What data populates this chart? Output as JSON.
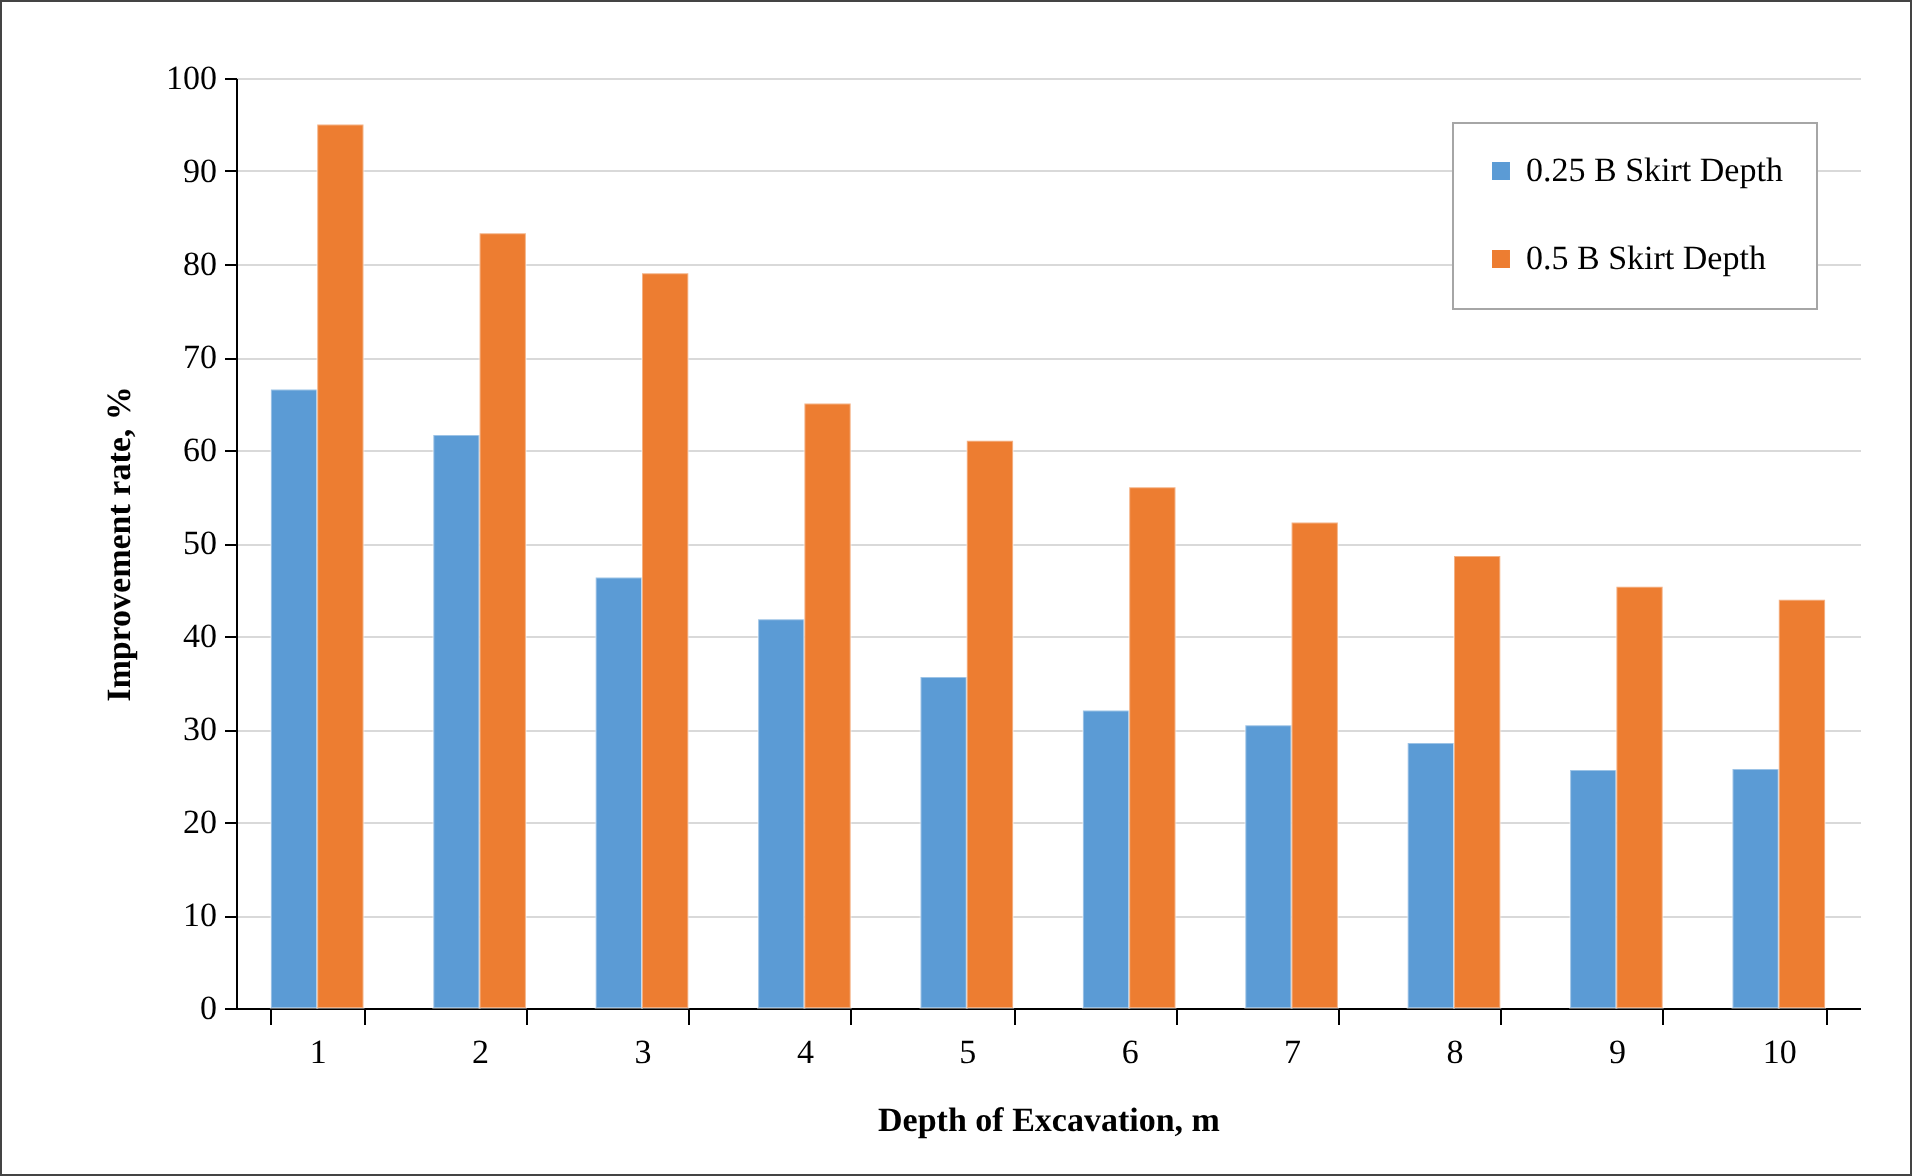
{
  "chart_data": {
    "type": "bar",
    "xlabel": "Depth of Excavation, m",
    "ylabel": "Improvement rate, %",
    "categories": [
      "1",
      "2",
      "3",
      "4",
      "5",
      "6",
      "7",
      "8",
      "9",
      "10"
    ],
    "series": [
      {
        "name": "0.25 B Skirt Depth",
        "color": "#5b9bd5",
        "values": [
          66.5,
          61.6,
          46.3,
          41.8,
          35.6,
          32.0,
          30.4,
          28.5,
          25.6,
          25.7
        ]
      },
      {
        "name": "0.5 B Skirt Depth",
        "color": "#ed7d31",
        "values": [
          95.0,
          83.3,
          79.0,
          65.0,
          61.0,
          56.0,
          52.2,
          48.6,
          45.3,
          43.9
        ]
      }
    ],
    "ylim": [
      0,
      100
    ],
    "yticks": [
      0,
      10,
      20,
      30,
      40,
      50,
      60,
      70,
      80,
      90,
      100
    ],
    "grid": "y",
    "legend": "top right"
  }
}
